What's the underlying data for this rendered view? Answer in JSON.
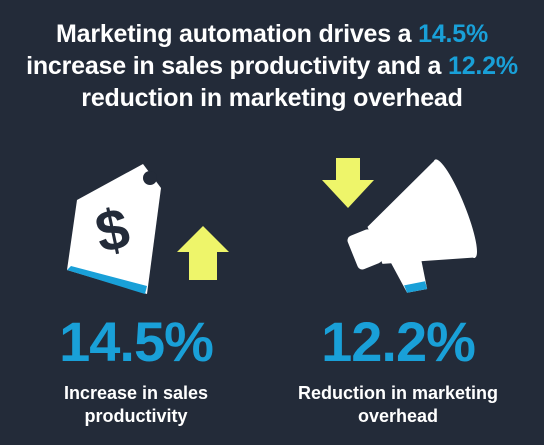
{
  "headline": {
    "line1_text": "Marketing automation drives a ",
    "line1_highlight": "14.5%",
    "line2_text": "increase in sales productivity and a ",
    "line2_highlight": "12.2%",
    "line3_text": "reduction in marketing overhead"
  },
  "stats": {
    "left": {
      "value": "14.5%",
      "caption_line1": "Increase in sales",
      "caption_line2": "productivity",
      "icon": "price-tag-dollar-icon",
      "arrow": "arrow-up-icon"
    },
    "right": {
      "value": "12.2%",
      "caption_line1": "Reduction in marketing",
      "caption_line2": "overhead",
      "icon": "megaphone-icon",
      "arrow": "arrow-down-icon"
    }
  },
  "tag_symbol": "$",
  "colors": {
    "background": "#232b39",
    "accent_blue": "#19a0d8",
    "arrow_yellow": "#eef56a",
    "white": "#ffffff"
  }
}
